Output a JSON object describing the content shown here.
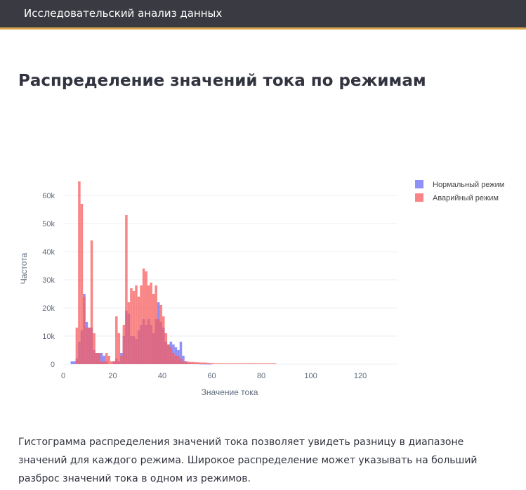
{
  "app": {
    "title": "Исследовательский анализ данных"
  },
  "page": {
    "heading": "Распределение значений тока по режимам"
  },
  "description": "Гистограмма распределения значений тока позволяет увидеть разницу в диапазоне значений для каждого режима. Широкое распределение может указывать на больший разброс значений тока в одном из режимов.",
  "colors": {
    "normal": "#6b6bf7",
    "fault": "#f75e5e",
    "grid": "#eceff5",
    "axis_text": "#5f6b7c"
  },
  "chart_data": {
    "type": "bar",
    "xlabel": "Значение тока",
    "ylabel": "Частота",
    "xlim": [
      0,
      135
    ],
    "ylim": [
      0,
      67000
    ],
    "xticks": [
      0,
      20,
      40,
      60,
      80,
      100,
      120
    ],
    "yticks": [
      0,
      10000,
      20000,
      30000,
      40000,
      50000,
      60000
    ],
    "ytick_labels": [
      "0",
      "10k",
      "20k",
      "30k",
      "40k",
      "50k",
      "60k"
    ],
    "legend_position": "top-right",
    "grid": true,
    "bin_width": 1,
    "bin_start": 0,
    "series": [
      {
        "name": "Нормальный режим",
        "color_key": "normal",
        "values": [
          0,
          0,
          0,
          1000,
          1000,
          2000,
          8000,
          12000,
          25000,
          15000,
          13000,
          13000,
          5000,
          4000,
          4000,
          4000,
          3000,
          1000,
          0,
          0,
          1000,
          2000,
          1000,
          4000,
          10000,
          19000,
          18000,
          10000,
          10000,
          9000,
          12000,
          14000,
          16000,
          14000,
          16000,
          14000,
          11000,
          16000,
          22000,
          15000,
          13000,
          8000,
          7000,
          8000,
          7000,
          6000,
          5000,
          8000,
          3000,
          1000,
          500,
          300,
          200,
          100,
          100,
          50,
          50,
          30,
          20,
          10
        ]
      },
      {
        "name": "Аварийный режим",
        "color_key": "fault",
        "values": [
          0,
          0,
          0,
          0,
          0,
          13000,
          65000,
          57000,
          24000,
          13000,
          13000,
          44000,
          11000,
          4000,
          4000,
          1000,
          1000,
          4000,
          3000,
          1000,
          1000,
          17000,
          11000,
          3000,
          14000,
          53000,
          22000,
          27000,
          26000,
          28000,
          24000,
          28000,
          34000,
          33000,
          28000,
          29000,
          25000,
          28000,
          16000,
          21000,
          17000,
          11000,
          7000,
          6000,
          4000,
          3000,
          3000,
          2000,
          1000,
          1000,
          900,
          800,
          800,
          700,
          700,
          600,
          600,
          600,
          500,
          400,
          400,
          300,
          300,
          300,
          300,
          300,
          300,
          300,
          300,
          300,
          300,
          300,
          300,
          300,
          300,
          300,
          300,
          300,
          300,
          300,
          300,
          300,
          300,
          300,
          300,
          300
        ]
      }
    ]
  }
}
